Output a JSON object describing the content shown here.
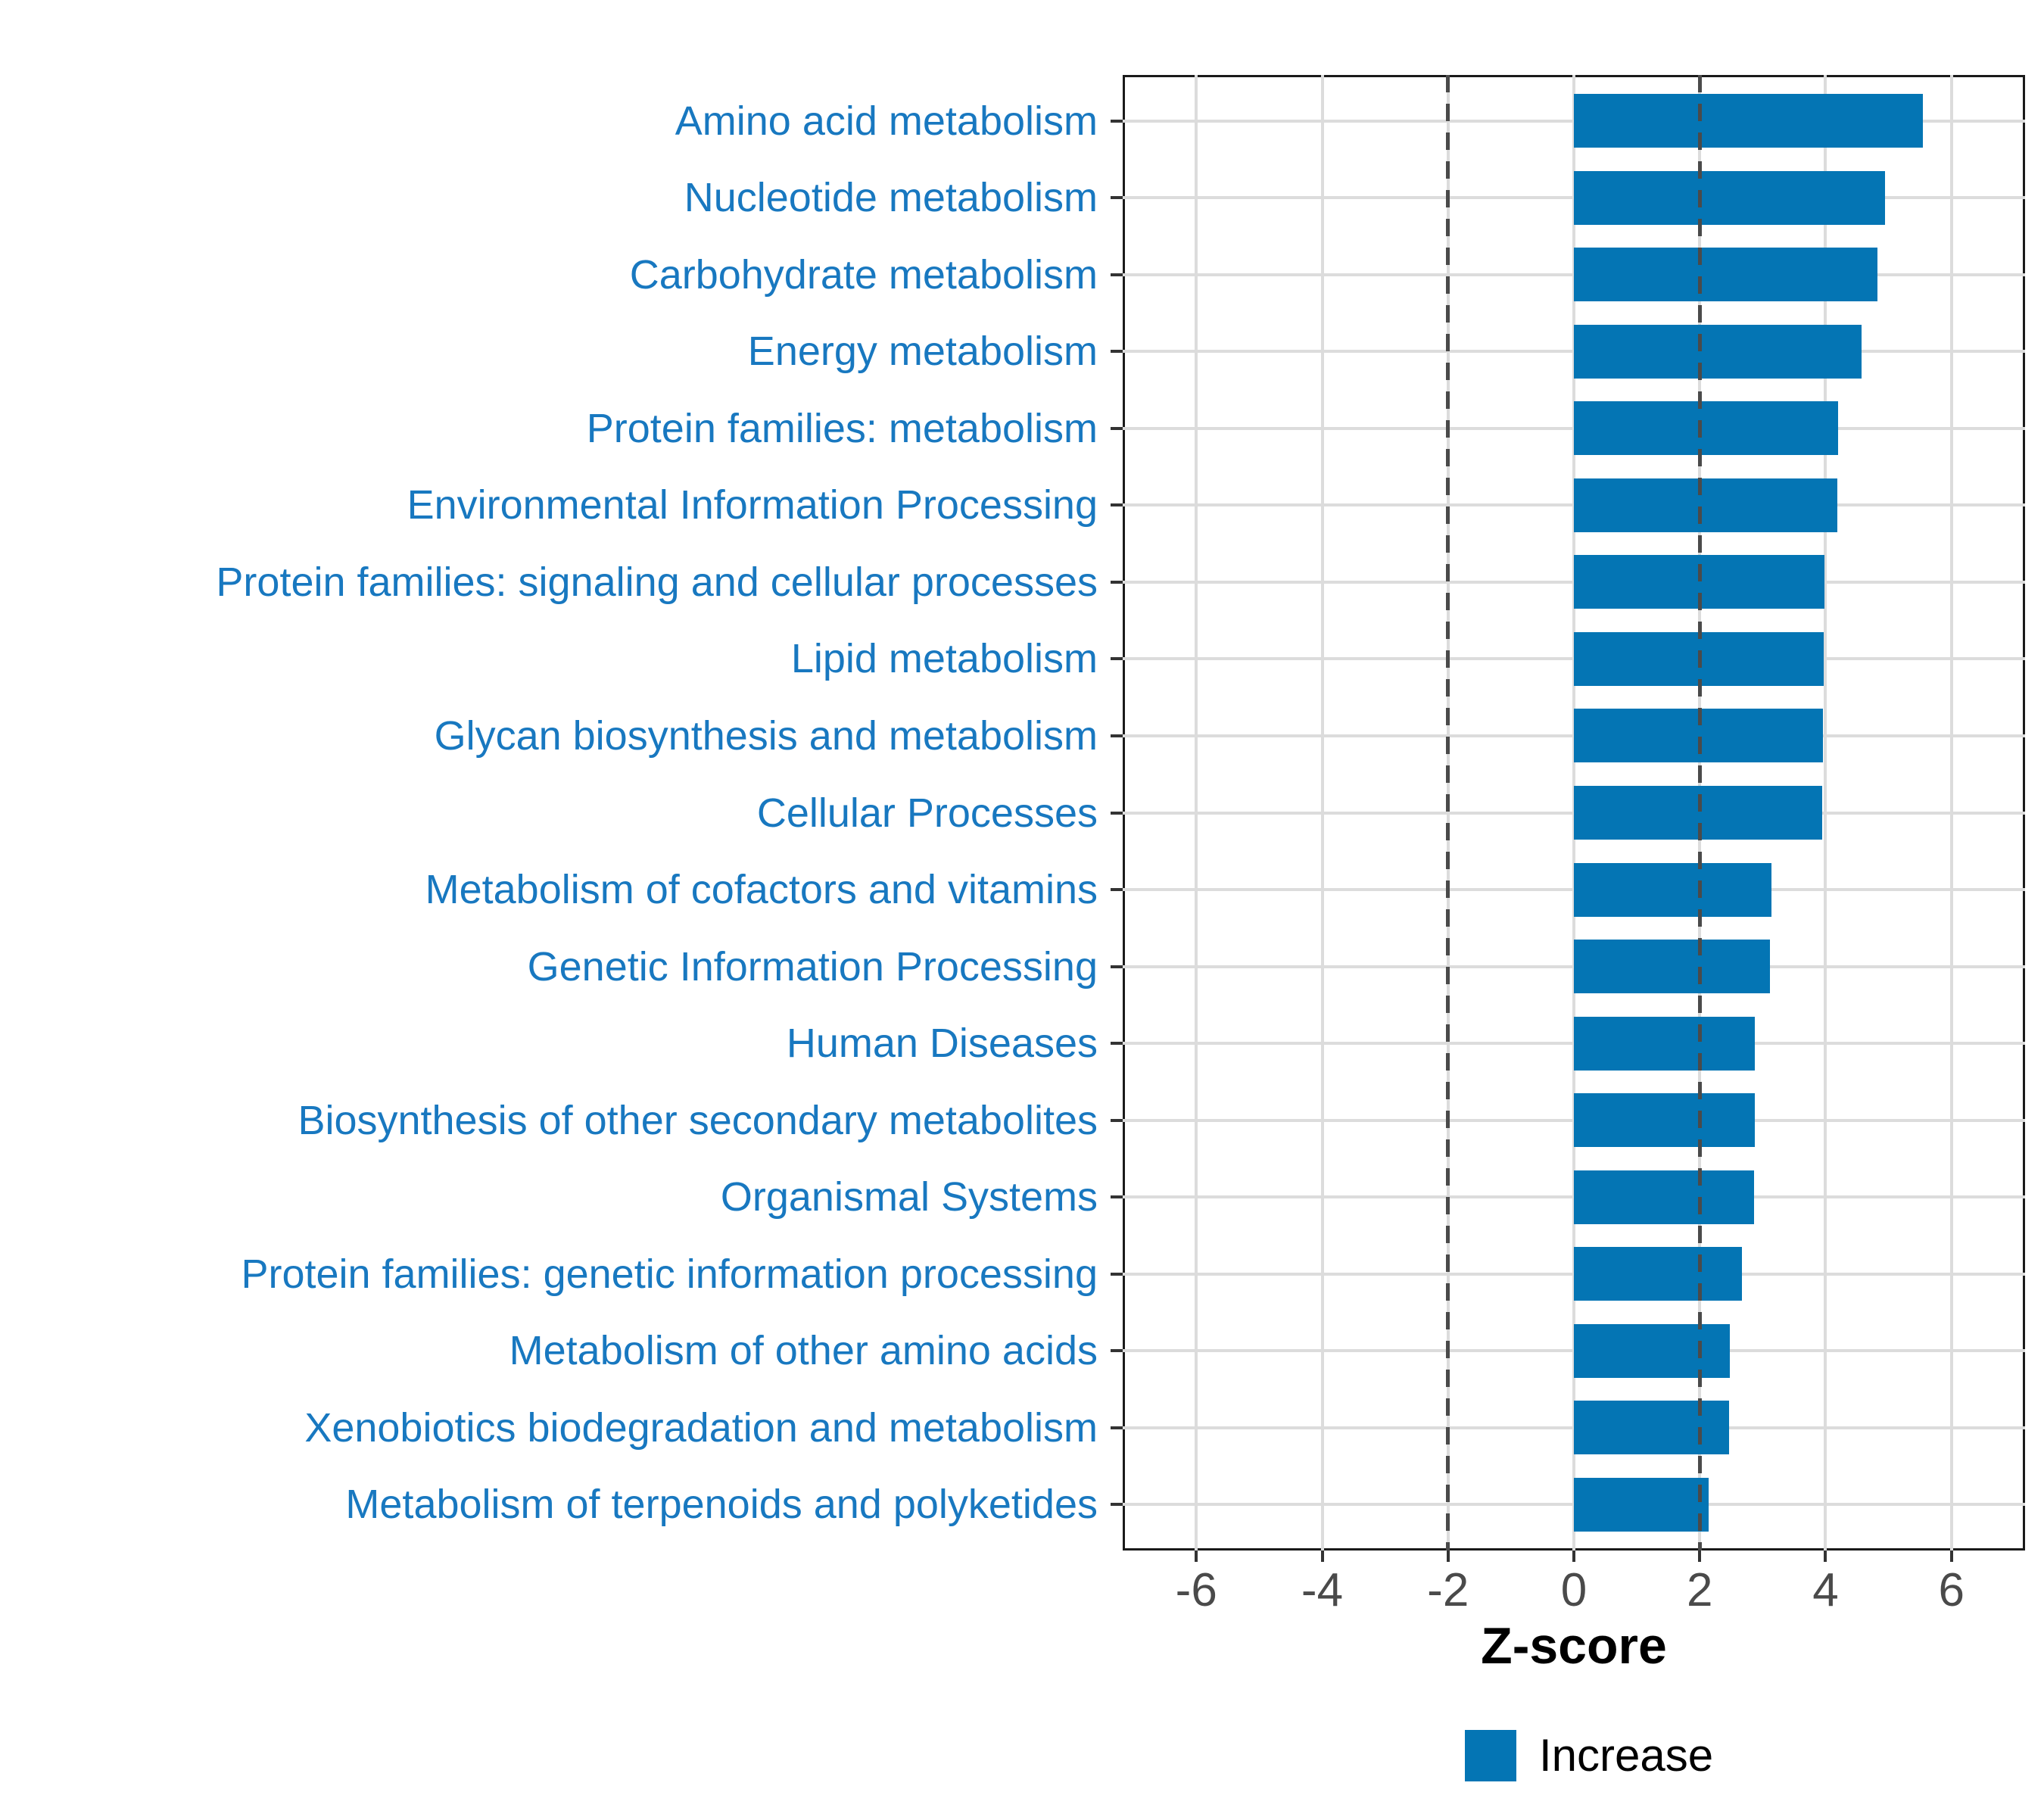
{
  "chart_data": {
    "type": "bar",
    "orientation": "horizontal",
    "title": "",
    "xlabel": "Z-score",
    "ylabel": "",
    "categories": [
      "Amino acid metabolism",
      "Nucleotide metabolism",
      "Carbohydrate metabolism",
      "Energy metabolism",
      "Protein families: metabolism",
      "Environmental Information Processing",
      "Protein families: signaling and cellular processes",
      "Lipid metabolism",
      "Glycan biosynthesis and metabolism",
      "Cellular Processes",
      "Metabolism of cofactors and vitamins",
      "Genetic Information Processing",
      "Human Diseases",
      "Biosynthesis of other secondary metabolites",
      "Organismal Systems",
      "Protein families: genetic information processing",
      "Metabolism of other amino acids",
      "Xenobiotics biodegradation and metabolism",
      "Metabolism of terpenoids and polyketides"
    ],
    "series": [
      {
        "name": "Increase",
        "values": [
          5.54,
          4.94,
          4.82,
          4.57,
          4.2,
          4.19,
          3.98,
          3.97,
          3.96,
          3.95,
          3.14,
          3.11,
          2.88,
          2.87,
          2.86,
          2.67,
          2.48,
          2.47,
          2.14
        ]
      }
    ],
    "xlim": [
      -7.17,
      7.17
    ],
    "x_ticks": [
      -6,
      -4,
      -2,
      0,
      2,
      4,
      6
    ],
    "x_tick_labels": [
      "-6",
      "-4",
      "-2",
      "0",
      "2",
      "4",
      "6"
    ],
    "reference_lines": [
      -2,
      2
    ],
    "grid": {
      "x_major": true,
      "x_minor": false,
      "y_category": true
    },
    "legend_position": "bottom"
  },
  "axis": {
    "x_title": "Z-score"
  },
  "legend": {
    "label": "Increase"
  },
  "colors": {
    "bar": "#0475b4",
    "category_label": "#1878c0",
    "grid": "#dcdcdc",
    "reference_line": "#4a4a4a",
    "axis_text": "#4a4a4a",
    "axis_title": "#000000",
    "panel_border": "#1a1a1a",
    "tick_mark": "#333333",
    "legend_text": "#000000",
    "background": "#ffffff"
  }
}
